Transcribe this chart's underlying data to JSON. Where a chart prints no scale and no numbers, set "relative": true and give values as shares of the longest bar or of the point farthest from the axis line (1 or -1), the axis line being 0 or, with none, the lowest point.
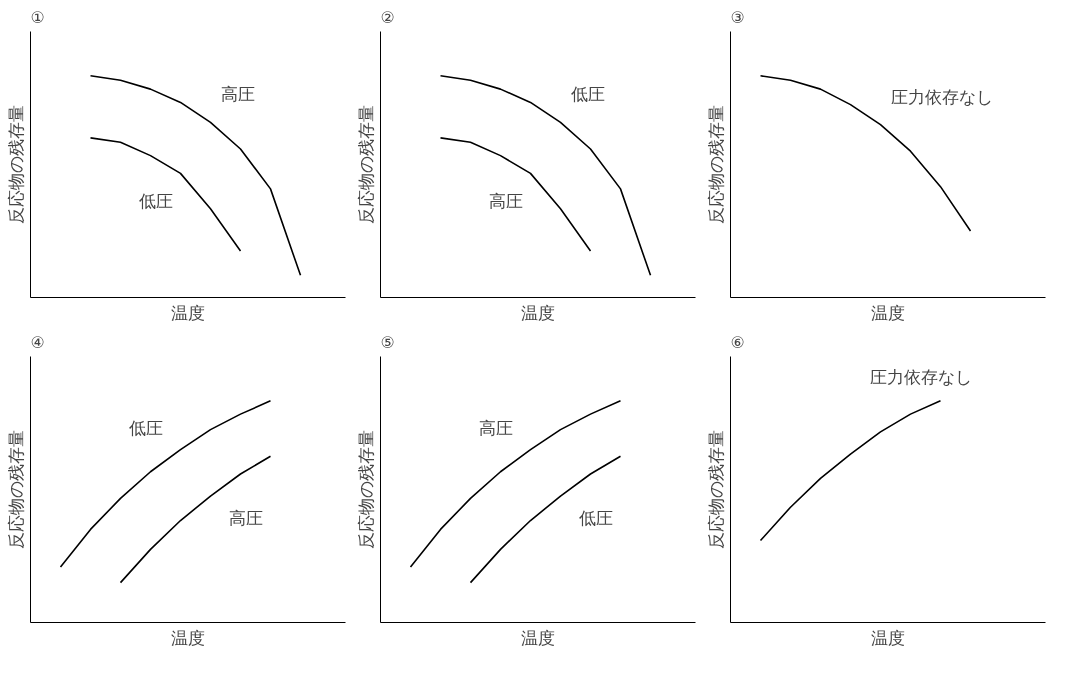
{
  "chart_data": [
    {
      "type": "line",
      "title": "①",
      "xlabel": "温度",
      "ylabel": "反応物の残存量",
      "relative": true,
      "tick_labels": false,
      "legend": false,
      "categories": [
        null,
        null,
        null,
        null,
        null,
        null,
        null,
        null,
        null,
        null,
        null
      ],
      "series": [
        {
          "name": "高圧",
          "color": "#000000",
          "values": [
            null,
            null,
            1.0,
            0.98,
            0.94,
            0.88,
            0.79,
            0.67,
            0.49,
            0.1,
            null
          ]
        },
        {
          "name": "低圧",
          "color": "#000000",
          "values": [
            null,
            null,
            0.72,
            0.7,
            0.64,
            0.56,
            0.4,
            0.21,
            null,
            null,
            null
          ]
        }
      ]
    },
    {
      "type": "line",
      "title": "②",
      "xlabel": "温度",
      "ylabel": "反応物の残存量",
      "relative": true,
      "tick_labels": false,
      "legend": false,
      "categories": [
        null,
        null,
        null,
        null,
        null,
        null,
        null,
        null,
        null,
        null,
        null
      ],
      "series": [
        {
          "name": "低圧",
          "color": "#000000",
          "values": [
            null,
            null,
            1.0,
            0.98,
            0.94,
            0.88,
            0.79,
            0.67,
            0.49,
            0.1,
            null
          ]
        },
        {
          "name": "高圧",
          "color": "#000000",
          "values": [
            null,
            null,
            0.72,
            0.7,
            0.64,
            0.56,
            0.4,
            0.21,
            null,
            null,
            null
          ]
        }
      ]
    },
    {
      "type": "line",
      "title": "③",
      "xlabel": "温度",
      "ylabel": "反応物の残存量",
      "relative": true,
      "tick_labels": false,
      "legend": false,
      "categories": [
        null,
        null,
        null,
        null,
        null,
        null,
        null,
        null,
        null,
        null,
        null
      ],
      "series": [
        {
          "name": "圧力依存なし",
          "color": "#000000",
          "values": [
            null,
            1.0,
            0.98,
            0.94,
            0.87,
            0.78,
            0.66,
            0.5,
            0.3,
            null,
            null
          ]
        }
      ]
    },
    {
      "type": "line",
      "title": "④",
      "xlabel": "温度",
      "ylabel": "反応物の残存量",
      "relative": true,
      "tick_labels": false,
      "legend": false,
      "categories": [
        null,
        null,
        null,
        null,
        null,
        null,
        null,
        null,
        null,
        null,
        null
      ],
      "series": [
        {
          "name": "低圧",
          "color": "#000000",
          "values": [
            null,
            0.25,
            0.42,
            0.56,
            0.68,
            0.78,
            0.87,
            0.94,
            1.0,
            null,
            null
          ]
        },
        {
          "name": "高圧",
          "color": "#000000",
          "values": [
            null,
            null,
            null,
            0.18,
            0.33,
            0.46,
            0.57,
            0.67,
            0.75,
            null,
            null
          ]
        }
      ]
    },
    {
      "type": "line",
      "title": "⑤",
      "xlabel": "温度",
      "ylabel": "反応物の残存量",
      "relative": true,
      "tick_labels": false,
      "legend": false,
      "categories": [
        null,
        null,
        null,
        null,
        null,
        null,
        null,
        null,
        null,
        null,
        null
      ],
      "series": [
        {
          "name": "高圧",
          "color": "#000000",
          "values": [
            null,
            0.25,
            0.42,
            0.56,
            0.68,
            0.78,
            0.87,
            0.94,
            1.0,
            null,
            null
          ]
        },
        {
          "name": "低圧",
          "color": "#000000",
          "values": [
            null,
            null,
            null,
            0.18,
            0.33,
            0.46,
            0.57,
            0.67,
            0.75,
            null,
            null
          ]
        }
      ]
    },
    {
      "type": "line",
      "title": "⑥",
      "xlabel": "温度",
      "ylabel": "反応物の残存量",
      "relative": true,
      "tick_labels": false,
      "legend": false,
      "categories": [
        null,
        null,
        null,
        null,
        null,
        null,
        null,
        null,
        null,
        null,
        null
      ],
      "series": [
        {
          "name": "圧力依存なし",
          "color": "#000000",
          "values": [
            null,
            0.37,
            0.52,
            0.65,
            0.76,
            0.86,
            0.94,
            1.0,
            null,
            null,
            null
          ]
        }
      ]
    }
  ]
}
